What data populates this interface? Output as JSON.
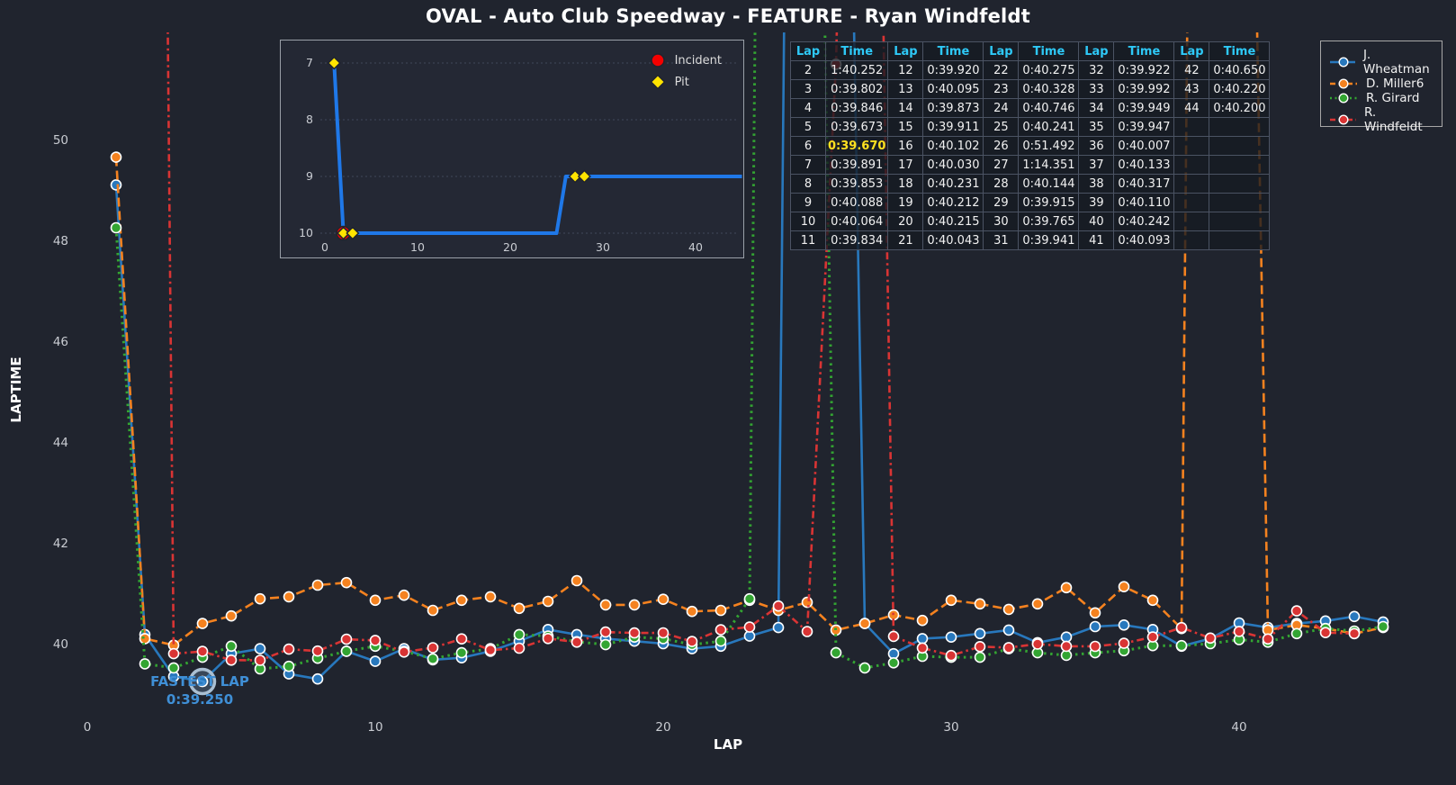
{
  "title": "OVAL - Auto Club Speedway - FEATURE - Ryan Windfeldt",
  "colors": {
    "background": "#20242e",
    "wheatman_blue": "#2878bd",
    "miller_orange": "#f5821f",
    "girard_green": "#33a532",
    "windfeldt_red": "#d93434",
    "table_header_cyan": "#2ec9f7",
    "highlight_yellow": "#ffe120",
    "annotation_blue": "#3f8fd6",
    "inset_line_blue": "#1f78e8",
    "incident_red": "#f40000",
    "pit_yellow": "#ffe400"
  },
  "chart_data": {
    "type": "line",
    "title": "OVAL - Auto Club Speedway - FEATURE - Ryan Windfeldt",
    "xlabel": "LAP",
    "ylabel": "LAPTIME",
    "xticks": [
      0,
      10,
      20,
      30,
      40
    ],
    "yticks": [
      40,
      42,
      44,
      46,
      48,
      50
    ],
    "xlim": [
      -0.5,
      47.5
    ],
    "ylim": [
      38.25,
      51.9
    ],
    "grid": false,
    "legend_position": "top-right",
    "series": [
      {
        "name": "J. Wheatman",
        "color": "#2878bd",
        "style": "solid",
        "points": [
          [
            1,
            49.1
          ],
          [
            2,
            40.18
          ],
          [
            3,
            39.35
          ],
          [
            4,
            39.25
          ],
          [
            5,
            39.8
          ],
          [
            6,
            39.9
          ],
          [
            7,
            39.4
          ],
          [
            8,
            39.3
          ],
          [
            9,
            39.85
          ],
          [
            10,
            39.65
          ],
          [
            11,
            39.9
          ],
          [
            12,
            39.68
          ],
          [
            13,
            39.72
          ],
          [
            14,
            39.85
          ],
          [
            15,
            40.05
          ],
          [
            16,
            40.28
          ],
          [
            17,
            40.18
          ],
          [
            18,
            40.1
          ],
          [
            19,
            40.05
          ],
          [
            20,
            40.0
          ],
          [
            21,
            39.9
          ],
          [
            22,
            39.95
          ],
          [
            23,
            40.15
          ],
          [
            24,
            40.32
          ],
          [
            25,
            100.5
          ],
          [
            26,
            72.0
          ],
          [
            27,
            40.4
          ],
          [
            28,
            39.8
          ],
          [
            29,
            40.1
          ],
          [
            30,
            40.13
          ],
          [
            31,
            40.2
          ],
          [
            32,
            40.27
          ],
          [
            33,
            40.02
          ],
          [
            34,
            40.13
          ],
          [
            35,
            40.34
          ],
          [
            36,
            40.37
          ],
          [
            37,
            40.28
          ],
          [
            38,
            39.95
          ],
          [
            39,
            40.1
          ],
          [
            40,
            40.41
          ],
          [
            41,
            40.32
          ],
          [
            42,
            40.4
          ],
          [
            43,
            40.45
          ],
          [
            44,
            40.54
          ],
          [
            45,
            40.43
          ]
        ]
      },
      {
        "name": "D. Miller6",
        "color": "#f5821f",
        "style": "dashed",
        "points": [
          [
            1,
            49.65
          ],
          [
            2,
            40.1
          ],
          [
            3,
            39.97
          ],
          [
            4,
            40.4
          ],
          [
            5,
            40.55
          ],
          [
            6,
            40.89
          ],
          [
            7,
            40.93
          ],
          [
            8,
            41.16
          ],
          [
            9,
            41.21
          ],
          [
            10,
            40.86
          ],
          [
            11,
            40.96
          ],
          [
            12,
            40.66
          ],
          [
            13,
            40.86
          ],
          [
            14,
            40.93
          ],
          [
            15,
            40.7
          ],
          [
            16,
            40.84
          ],
          [
            17,
            41.25
          ],
          [
            18,
            40.77
          ],
          [
            19,
            40.77
          ],
          [
            20,
            40.88
          ],
          [
            21,
            40.64
          ],
          [
            22,
            40.66
          ],
          [
            23,
            40.86
          ],
          [
            24,
            40.66
          ],
          [
            25,
            40.82
          ],
          [
            26,
            40.27
          ],
          [
            27,
            40.4
          ],
          [
            28,
            40.57
          ],
          [
            29,
            40.46
          ],
          [
            30,
            40.86
          ],
          [
            31,
            40.79
          ],
          [
            32,
            40.68
          ],
          [
            33,
            40.79
          ],
          [
            34,
            41.11
          ],
          [
            35,
            40.61
          ],
          [
            36,
            41.13
          ],
          [
            37,
            40.86
          ],
          [
            38,
            40.3
          ],
          [
            39,
            100.5
          ],
          [
            40,
            72.0
          ],
          [
            41,
            40.27
          ],
          [
            42,
            40.37
          ],
          [
            43,
            40.3
          ],
          [
            44,
            40.2
          ],
          [
            45,
            40.32
          ]
        ]
      },
      {
        "name": "R. Girard",
        "color": "#33a532",
        "style": "dotted",
        "points": [
          [
            1,
            48.25
          ],
          [
            2,
            39.6
          ],
          [
            3,
            39.52
          ],
          [
            4,
            39.73
          ],
          [
            5,
            39.95
          ],
          [
            6,
            39.5
          ],
          [
            7,
            39.55
          ],
          [
            8,
            39.71
          ],
          [
            9,
            39.85
          ],
          [
            10,
            39.95
          ],
          [
            11,
            39.85
          ],
          [
            12,
            39.7
          ],
          [
            13,
            39.82
          ],
          [
            14,
            39.9
          ],
          [
            15,
            40.18
          ],
          [
            16,
            40.15
          ],
          [
            17,
            40.04
          ],
          [
            18,
            39.98
          ],
          [
            19,
            40.13
          ],
          [
            20,
            40.1
          ],
          [
            21,
            39.98
          ],
          [
            22,
            40.05
          ],
          [
            23,
            40.89
          ],
          [
            24,
            100.5
          ],
          [
            25,
            72.0
          ],
          [
            26,
            39.82
          ],
          [
            27,
            39.52
          ],
          [
            28,
            39.62
          ],
          [
            29,
            39.75
          ],
          [
            30,
            39.73
          ],
          [
            31,
            39.73
          ],
          [
            32,
            39.9
          ],
          [
            33,
            39.82
          ],
          [
            34,
            39.77
          ],
          [
            35,
            39.82
          ],
          [
            36,
            39.86
          ],
          [
            37,
            39.96
          ],
          [
            38,
            39.96
          ],
          [
            39,
            40.0
          ],
          [
            40,
            40.08
          ],
          [
            41,
            40.03
          ],
          [
            42,
            40.2
          ],
          [
            43,
            40.3
          ],
          [
            44,
            40.25
          ],
          [
            45,
            40.34
          ]
        ]
      },
      {
        "name": "R. Windfeldt",
        "color": "#d93434",
        "style": "dashdot",
        "points": [
          [
            2,
            100.252
          ],
          [
            3,
            39.802
          ],
          [
            4,
            39.846
          ],
          [
            5,
            39.673
          ],
          [
            6,
            39.67
          ],
          [
            7,
            39.891
          ],
          [
            8,
            39.853
          ],
          [
            9,
            40.088
          ],
          [
            10,
            40.064
          ],
          [
            11,
            39.834
          ],
          [
            12,
            39.92
          ],
          [
            13,
            40.095
          ],
          [
            14,
            39.873
          ],
          [
            15,
            39.911
          ],
          [
            16,
            40.102
          ],
          [
            17,
            40.03
          ],
          [
            18,
            40.231
          ],
          [
            19,
            40.212
          ],
          [
            20,
            40.215
          ],
          [
            21,
            40.043
          ],
          [
            22,
            40.275
          ],
          [
            23,
            40.328
          ],
          [
            24,
            40.746
          ],
          [
            25,
            40.241
          ],
          [
            26,
            51.492
          ],
          [
            27,
            74.351
          ],
          [
            28,
            40.144
          ],
          [
            29,
            39.915
          ],
          [
            30,
            39.765
          ],
          [
            31,
            39.941
          ],
          [
            32,
            39.922
          ],
          [
            33,
            39.992
          ],
          [
            34,
            39.949
          ],
          [
            35,
            39.947
          ],
          [
            36,
            40.007
          ],
          [
            37,
            40.133
          ],
          [
            38,
            40.317
          ],
          [
            39,
            40.11
          ],
          [
            40,
            40.242
          ],
          [
            41,
            40.093
          ],
          [
            42,
            40.65
          ],
          [
            43,
            40.22
          ],
          [
            44,
            40.2
          ]
        ]
      }
    ],
    "fastest_lap": {
      "label": "FASTEST LAP",
      "value": "0:39.250",
      "lap": 4,
      "seconds": 39.25,
      "series": "J. Wheatman"
    }
  },
  "inset_chart": {
    "type": "line",
    "ylabel_values": "position",
    "yticks": [
      7,
      8,
      9,
      10
    ],
    "xticks": [
      0,
      10,
      20,
      30,
      40
    ],
    "y_inverted": true,
    "line_color": "#1f78e8",
    "line_points": [
      [
        1,
        7
      ],
      [
        2,
        10
      ],
      [
        25,
        10
      ],
      [
        26,
        9
      ],
      [
        45,
        9
      ]
    ],
    "pit_markers": [
      [
        1,
        7
      ],
      [
        2,
        10
      ],
      [
        3,
        10
      ],
      [
        27,
        9
      ],
      [
        28,
        9
      ]
    ],
    "incident_markers": [
      [
        2,
        10
      ]
    ],
    "legend": {
      "incident_label": "Incident",
      "pit_label": "Pit"
    }
  },
  "lap_table": {
    "headers": [
      "Lap",
      "Time"
    ],
    "highlight_lap": 6,
    "groups": [
      [
        [
          2,
          "1:40.252"
        ],
        [
          3,
          "0:39.802"
        ],
        [
          4,
          "0:39.846"
        ],
        [
          5,
          "0:39.673"
        ],
        [
          6,
          "0:39.670"
        ],
        [
          7,
          "0:39.891"
        ],
        [
          8,
          "0:39.853"
        ],
        [
          9,
          "0:40.088"
        ],
        [
          10,
          "0:40.064"
        ],
        [
          11,
          "0:39.834"
        ]
      ],
      [
        [
          12,
          "0:39.920"
        ],
        [
          13,
          "0:40.095"
        ],
        [
          14,
          "0:39.873"
        ],
        [
          15,
          "0:39.911"
        ],
        [
          16,
          "0:40.102"
        ],
        [
          17,
          "0:40.030"
        ],
        [
          18,
          "0:40.231"
        ],
        [
          19,
          "0:40.212"
        ],
        [
          20,
          "0:40.215"
        ],
        [
          21,
          "0:40.043"
        ]
      ],
      [
        [
          22,
          "0:40.275"
        ],
        [
          23,
          "0:40.328"
        ],
        [
          24,
          "0:40.746"
        ],
        [
          25,
          "0:40.241"
        ],
        [
          26,
          "0:51.492"
        ],
        [
          27,
          "1:14.351"
        ],
        [
          28,
          "0:40.144"
        ],
        [
          29,
          "0:39.915"
        ],
        [
          30,
          "0:39.765"
        ],
        [
          31,
          "0:39.941"
        ]
      ],
      [
        [
          32,
          "0:39.922"
        ],
        [
          33,
          "0:39.992"
        ],
        [
          34,
          "0:39.949"
        ],
        [
          35,
          "0:39.947"
        ],
        [
          36,
          "0:40.007"
        ],
        [
          37,
          "0:40.133"
        ],
        [
          38,
          "0:40.317"
        ],
        [
          39,
          "0:40.110"
        ],
        [
          40,
          "0:40.242"
        ],
        [
          41,
          "0:40.093"
        ]
      ],
      [
        [
          42,
          "0:40.650"
        ],
        [
          43,
          "0:40.220"
        ],
        [
          44,
          "0:40.200"
        ]
      ]
    ]
  }
}
